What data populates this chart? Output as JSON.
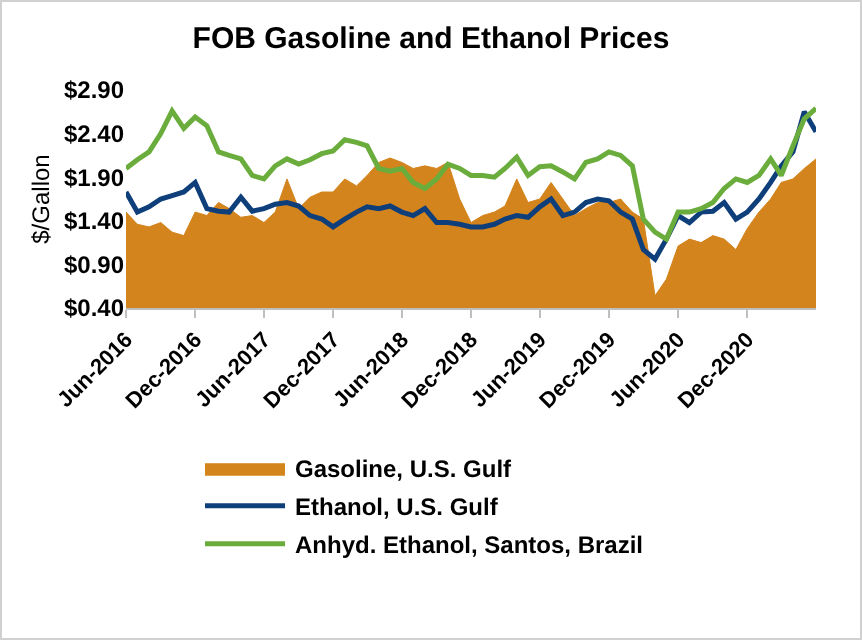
{
  "chart_data": {
    "type": "line",
    "title": "FOB Gasoline and Ethanol Prices",
    "ylabel": "$/Gallon",
    "x": [
      "2016-06",
      "2016-07",
      "2016-08",
      "2016-09",
      "2016-10",
      "2016-11",
      "2016-12",
      "2017-01",
      "2017-02",
      "2017-03",
      "2017-04",
      "2017-05",
      "2017-06",
      "2017-07",
      "2017-08",
      "2017-09",
      "2017-10",
      "2017-11",
      "2017-12",
      "2018-01",
      "2018-02",
      "2018-03",
      "2018-04",
      "2018-05",
      "2018-06",
      "2018-07",
      "2018-08",
      "2018-09",
      "2018-10",
      "2018-11",
      "2018-12",
      "2019-01",
      "2019-02",
      "2019-03",
      "2019-04",
      "2019-05",
      "2019-06",
      "2019-07",
      "2019-08",
      "2019-09",
      "2019-10",
      "2019-11",
      "2019-12",
      "2020-01",
      "2020-02",
      "2020-03",
      "2020-04",
      "2020-05",
      "2020-06",
      "2020-07",
      "2020-08",
      "2020-09",
      "2020-10",
      "2020-11",
      "2020-12",
      "2021-01",
      "2021-02",
      "2021-03",
      "2021-04",
      "2021-05",
      "2021-06"
    ],
    "series": [
      {
        "name": "Gasoline, U.S. Gulf",
        "type": "area",
        "color": "#d4841c",
        "values": [
          1.5,
          1.36,
          1.33,
          1.38,
          1.27,
          1.23,
          1.5,
          1.46,
          1.61,
          1.54,
          1.44,
          1.46,
          1.38,
          1.5,
          1.88,
          1.54,
          1.67,
          1.73,
          1.73,
          1.88,
          1.8,
          1.92,
          2.07,
          2.12,
          2.07,
          2.0,
          2.03,
          2.0,
          2.07,
          1.65,
          1.38,
          1.46,
          1.5,
          1.57,
          1.88,
          1.61,
          1.65,
          1.84,
          1.65,
          1.46,
          1.54,
          1.61,
          1.61,
          1.65,
          1.5,
          1.42,
          0.54,
          0.73,
          1.11,
          1.19,
          1.15,
          1.23,
          1.19,
          1.07,
          1.31,
          1.5,
          1.65,
          1.84,
          1.88,
          2.0,
          2.11
        ]
      },
      {
        "name": "Ethanol, U.S. Gulf",
        "type": "line",
        "color": "#0e3f7a",
        "values": [
          1.73,
          1.5,
          1.56,
          1.65,
          1.69,
          1.73,
          1.84,
          1.54,
          1.51,
          1.5,
          1.67,
          1.51,
          1.54,
          1.59,
          1.61,
          1.57,
          1.46,
          1.42,
          1.33,
          1.42,
          1.5,
          1.56,
          1.54,
          1.57,
          1.5,
          1.46,
          1.54,
          1.38,
          1.38,
          1.36,
          1.33,
          1.33,
          1.36,
          1.42,
          1.46,
          1.44,
          1.56,
          1.65,
          1.46,
          1.5,
          1.61,
          1.65,
          1.63,
          1.5,
          1.42,
          1.07,
          0.96,
          1.19,
          1.46,
          1.38,
          1.5,
          1.51,
          1.61,
          1.42,
          1.5,
          1.65,
          1.84,
          2.03,
          2.19,
          2.65,
          2.42
        ]
      },
      {
        "name": "Anhyd. Ethanol, Santos, Brazil",
        "type": "line",
        "color": "#6aad3d",
        "values": [
          2.0,
          2.1,
          2.19,
          2.4,
          2.66,
          2.46,
          2.59,
          2.49,
          2.19,
          2.15,
          2.11,
          1.92,
          1.88,
          2.03,
          2.11,
          2.05,
          2.1,
          2.17,
          2.2,
          2.33,
          2.3,
          2.26,
          2.0,
          1.97,
          2.0,
          1.84,
          1.77,
          1.88,
          2.05,
          2.0,
          1.92,
          1.92,
          1.9,
          2.0,
          2.13,
          1.92,
          2.02,
          2.03,
          1.96,
          1.88,
          2.07,
          2.11,
          2.19,
          2.15,
          2.03,
          1.42,
          1.27,
          1.19,
          1.5,
          1.5,
          1.54,
          1.61,
          1.77,
          1.88,
          1.84,
          1.92,
          2.11,
          1.92,
          2.26,
          2.57,
          2.69
        ]
      }
    ],
    "ylim": [
      0.4,
      2.9
    ],
    "yticks": [
      {
        "value": 0.4,
        "label": "$0.40"
      },
      {
        "value": 0.9,
        "label": "$0.90"
      },
      {
        "value": 1.4,
        "label": "$1.40"
      },
      {
        "value": 1.9,
        "label": "$1.90"
      },
      {
        "value": 2.4,
        "label": "$2.40"
      },
      {
        "value": 2.9,
        "label": "$2.90"
      }
    ],
    "xlim": [
      "2016-06",
      "2021-06"
    ],
    "xticks": [
      {
        "value": "2016-06",
        "label": "Jun-2016"
      },
      {
        "value": "2016-12",
        "label": "Dec-2016"
      },
      {
        "value": "2017-06",
        "label": "Jun-2017"
      },
      {
        "value": "2017-12",
        "label": "Dec-2017"
      },
      {
        "value": "2018-06",
        "label": "Jun-2018"
      },
      {
        "value": "2018-12",
        "label": "Dec-2018"
      },
      {
        "value": "2019-06",
        "label": "Jun-2019"
      },
      {
        "value": "2019-12",
        "label": "Dec-2019"
      },
      {
        "value": "2020-06",
        "label": "Jun-2020"
      },
      {
        "value": "2020-12",
        "label": "Dec-2020"
      }
    ],
    "grid": false,
    "legend": "bottom",
    "marker": "none",
    "line_style": "solid"
  }
}
